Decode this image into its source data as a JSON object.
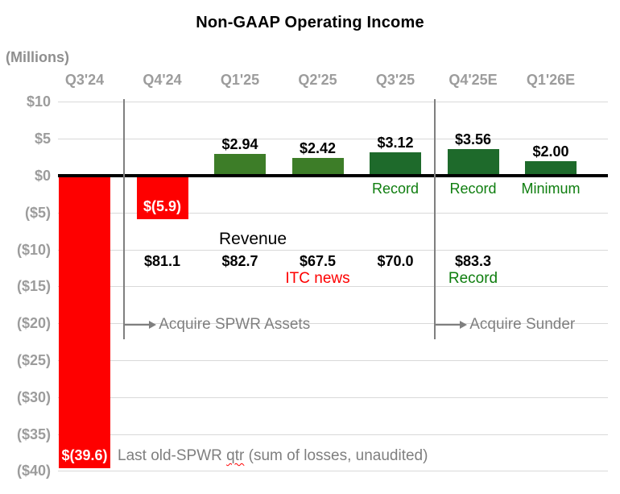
{
  "title": "Non-GAAP Operating Income",
  "units_label": "(Millions)",
  "colors": {
    "loss_bar": "#fe0000",
    "profit_bar_medium": "#3d7d28",
    "profit_bar_dark": "#1e6a2b",
    "green_text": "#0f7e0f",
    "red_text": "#fe0000",
    "gray_label": "#9c9c9c",
    "gray_annotation": "#7f7f7f",
    "gridline": "#d9d9d9",
    "zero_line": "#000000"
  },
  "chart_data": {
    "type": "bar",
    "title": "Non-GAAP Operating Income",
    "ylabel": "(Millions)",
    "xlabel": "",
    "ylim": [
      -40,
      10
    ],
    "ytick_step": 5,
    "grid": true,
    "legend_position": "none",
    "categories": [
      "Q3'24",
      "Q4'24",
      "Q1'25",
      "Q2'25",
      "Q3'25",
      "Q4'25E",
      "Q1'26E"
    ],
    "values": [
      -39.6,
      -5.9,
      2.94,
      2.42,
      3.12,
      3.56,
      2.0
    ],
    "ytick_labels": [
      "$10",
      "$5",
      "$0",
      "($5)",
      "($10)",
      "($15)",
      "($20)",
      "($25)",
      "($30)",
      "($35)",
      "($40)"
    ],
    "bars": [
      {
        "category": "Q3'24",
        "value": -39.6,
        "label": "$(39.6)",
        "label_placement": "inside-bottom",
        "label_color": "#ffffff",
        "color": "#fe0000"
      },
      {
        "category": "Q4'24",
        "value": -5.9,
        "label": "$(5.9)",
        "label_placement": "inside-bottom",
        "label_color": "#ffffff",
        "color": "#fe0000"
      },
      {
        "category": "Q1'25",
        "value": 2.94,
        "label": "$2.94",
        "label_placement": "above",
        "label_color": "#000000",
        "color": "#3d7d28"
      },
      {
        "category": "Q2'25",
        "value": 2.42,
        "label": "$2.42",
        "label_placement": "above",
        "label_color": "#000000",
        "color": "#3d7d28"
      },
      {
        "category": "Q3'25",
        "value": 3.12,
        "label": "$3.12",
        "label_placement": "above",
        "label_color": "#000000",
        "color": "#1e6a2b",
        "status": "Record",
        "status_color": "#0f7e0f"
      },
      {
        "category": "Q4'25E",
        "value": 3.56,
        "label": "$3.56",
        "label_placement": "above",
        "label_color": "#000000",
        "color": "#1e6a2b",
        "status": "Record",
        "status_color": "#0f7e0f"
      },
      {
        "category": "Q1'26E",
        "value": 2.0,
        "label": "$2.00",
        "label_placement": "above",
        "label_color": "#000000",
        "color": "#1e6a2b",
        "status": "Minimum",
        "status_color": "#0f7e0f"
      }
    ],
    "revenue_row": {
      "label": "Revenue",
      "values": [
        {
          "category": "Q4'24",
          "text": "$81.1"
        },
        {
          "category": "Q1'25",
          "text": "$82.7"
        },
        {
          "category": "Q2'25",
          "text": "$67.5",
          "note": "ITC news",
          "note_color": "#fe0000"
        },
        {
          "category": "Q3'25",
          "text": "$70.0"
        },
        {
          "category": "Q4'25E",
          "text": "$83.3",
          "note": "Record",
          "note_color": "#0f7e0f"
        }
      ]
    },
    "dividers": [
      {
        "after_category": "Q3'24",
        "text": "Acquire SPWR Assets"
      },
      {
        "after_category": "Q3'25",
        "text": "Acquire Sunder"
      }
    ],
    "footnote": {
      "pre": "Last old-SPWR ",
      "squiggle": "qtr",
      "post": " (sum of losses, unaudited)"
    }
  }
}
